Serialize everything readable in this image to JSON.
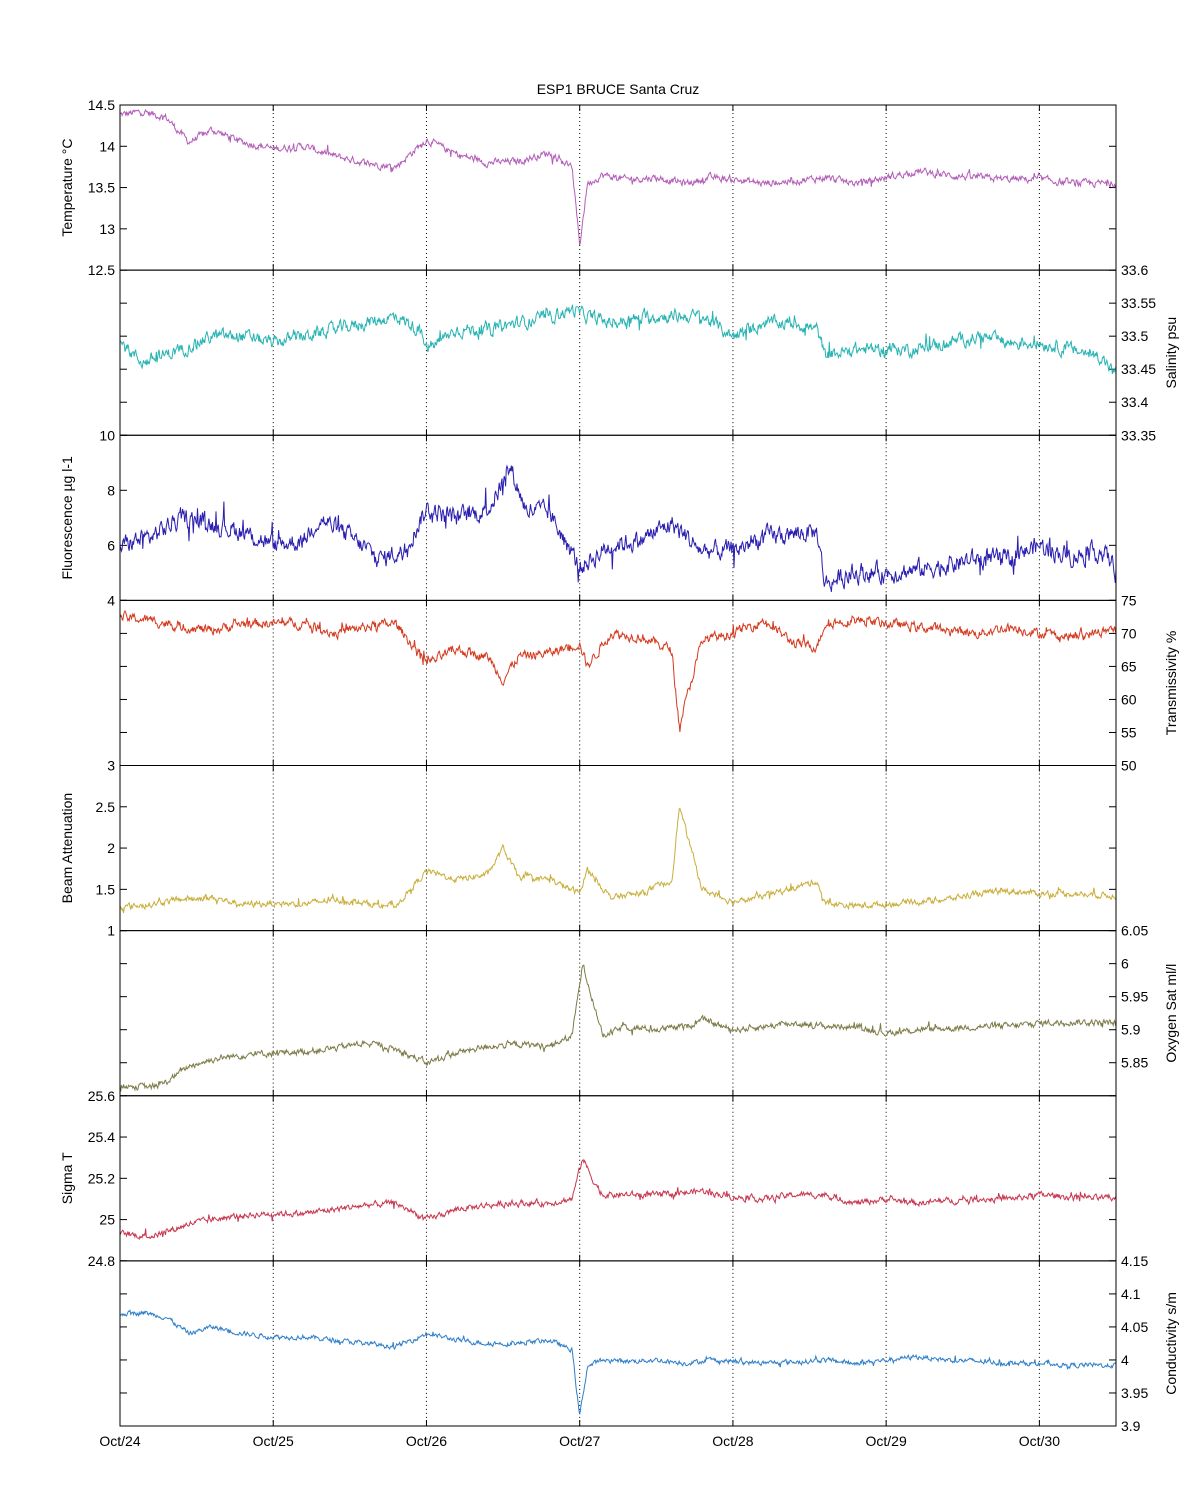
{
  "chart_data": {
    "type": "line",
    "title": "ESP1 BRUCE Santa Cruz",
    "x_ticks": [
      "Oct/24",
      "Oct/25",
      "Oct/26",
      "Oct/27",
      "Oct/28",
      "Oct/29",
      "Oct/30"
    ],
    "x_range_days": [
      0,
      6.5
    ],
    "grid": "vertical dotted lines at each day",
    "series": [
      {
        "name": "Temperature",
        "ylabel": "Temperature °C",
        "axis_side": "left",
        "color": "#b35eb8",
        "ylim": [
          12.5,
          14.5
        ],
        "ticks": [
          "12.5",
          "13",
          "13.5",
          "14",
          "14.5"
        ],
        "x": [
          0,
          0.15,
          0.3,
          0.45,
          0.6,
          0.8,
          1.0,
          1.2,
          1.4,
          1.6,
          1.8,
          2.0,
          2.2,
          2.4,
          2.6,
          2.8,
          2.95,
          3.0,
          3.05,
          3.15,
          3.3,
          3.5,
          3.7,
          3.85,
          4.0,
          4.2,
          4.4,
          4.6,
          4.8,
          5.0,
          5.2,
          5.4,
          5.6,
          5.8,
          6.0,
          6.2,
          6.5
        ],
        "values": [
          14.38,
          14.42,
          14.35,
          14.05,
          14.2,
          14.05,
          13.97,
          14.0,
          13.88,
          13.8,
          13.75,
          14.08,
          13.9,
          13.8,
          13.82,
          13.92,
          13.75,
          12.8,
          13.55,
          13.65,
          13.6,
          13.62,
          13.55,
          13.62,
          13.6,
          13.55,
          13.58,
          13.62,
          13.55,
          13.62,
          13.7,
          13.65,
          13.62,
          13.6,
          13.6,
          13.55,
          13.55
        ],
        "jitter": 0.035
      },
      {
        "name": "Salinity",
        "ylabel": "Salinity psu",
        "axis_side": "right",
        "color": "#29b3b3",
        "ylim": [
          33.35,
          33.6
        ],
        "ticks": [
          "33.35",
          "33.4",
          "33.45",
          "33.5",
          "33.55",
          "33.6"
        ],
        "x": [
          0,
          0.15,
          0.4,
          0.6,
          0.8,
          1.0,
          1.2,
          1.4,
          1.6,
          1.8,
          1.95,
          2.0,
          2.2,
          2.4,
          2.6,
          2.8,
          2.95,
          3.05,
          3.2,
          3.5,
          3.8,
          4.0,
          4.2,
          4.4,
          4.55,
          4.6,
          4.8,
          5.0,
          5.2,
          5.4,
          5.6,
          5.8,
          6.0,
          6.2,
          6.4,
          6.5
        ],
        "values": [
          33.49,
          33.46,
          33.48,
          33.5,
          33.5,
          33.49,
          33.5,
          33.51,
          33.52,
          33.53,
          33.51,
          33.48,
          33.51,
          33.51,
          33.52,
          33.53,
          33.54,
          33.53,
          33.52,
          33.53,
          33.53,
          33.5,
          33.52,
          33.52,
          33.51,
          33.47,
          33.48,
          33.48,
          33.48,
          33.49,
          33.5,
          33.49,
          33.49,
          33.48,
          33.47,
          33.44
        ],
        "jitter": 0.008
      },
      {
        "name": "Fluorescence",
        "ylabel": "Fluorescence µg l-1",
        "axis_side": "left",
        "color": "#2a1fb0",
        "ylim": [
          4,
          10
        ],
        "ticks": [
          "4",
          "6",
          "8",
          "10"
        ],
        "x": [
          0,
          0.2,
          0.4,
          0.6,
          0.8,
          1.0,
          1.2,
          1.3,
          1.5,
          1.7,
          1.85,
          2.0,
          2.2,
          2.4,
          2.55,
          2.65,
          2.8,
          3.0,
          3.2,
          3.4,
          3.6,
          3.8,
          4.0,
          4.2,
          4.4,
          4.55,
          4.6,
          4.8,
          5.0,
          5.2,
          5.4,
          5.6,
          5.8,
          6.0,
          6.2,
          6.4,
          6.5
        ],
        "values": [
          6.0,
          6.3,
          7.0,
          6.8,
          6.5,
          6.0,
          6.2,
          7.0,
          6.3,
          5.5,
          5.8,
          7.3,
          7.0,
          7.3,
          8.8,
          7.3,
          7.2,
          5.2,
          6.0,
          6.2,
          6.8,
          5.8,
          5.8,
          6.3,
          6.4,
          6.5,
          4.6,
          5.0,
          5.0,
          5.1,
          5.3,
          5.5,
          5.5,
          6.0,
          5.6,
          5.8,
          5.2
        ],
        "jitter": 0.28
      },
      {
        "name": "Transmissivity",
        "ylabel": "Transmissivity %",
        "axis_side": "right",
        "color": "#d43a1f",
        "ylim": [
          50,
          75
        ],
        "ticks": [
          "50",
          "55",
          "60",
          "65",
          "70",
          "75"
        ],
        "x": [
          0,
          0.2,
          0.4,
          0.6,
          0.8,
          1.0,
          1.2,
          1.4,
          1.6,
          1.8,
          2.0,
          2.2,
          2.4,
          2.5,
          2.6,
          2.8,
          3.0,
          3.05,
          3.2,
          3.4,
          3.6,
          3.65,
          3.8,
          4.0,
          4.2,
          4.4,
          4.55,
          4.6,
          4.8,
          5.0,
          5.2,
          5.4,
          5.6,
          5.8,
          6.0,
          6.2,
          6.5
        ],
        "values": [
          72.5,
          72.0,
          71.0,
          70.5,
          71.5,
          71.5,
          71.5,
          70.0,
          71.0,
          71.5,
          65.5,
          67.5,
          66.5,
          63.0,
          66.5,
          67.0,
          68.5,
          65.0,
          70.0,
          69.5,
          67.5,
          56.0,
          69.0,
          70.0,
          72.0,
          68.5,
          68.0,
          71.5,
          72.0,
          71.5,
          71.0,
          70.5,
          70.0,
          71.0,
          70.0,
          69.5,
          70.5
        ],
        "jitter": 0.6
      },
      {
        "name": "Beam Attenuation",
        "ylabel": "Beam Attenuation",
        "axis_side": "left",
        "color": "#c9ae3a",
        "ylim": [
          1,
          3
        ],
        "ticks": [
          "1",
          "1.5",
          "2",
          "2.5",
          "3"
        ],
        "x": [
          0,
          0.2,
          0.4,
          0.6,
          0.8,
          1.0,
          1.2,
          1.4,
          1.6,
          1.8,
          2.0,
          2.2,
          2.4,
          2.5,
          2.6,
          2.8,
          3.0,
          3.05,
          3.2,
          3.4,
          3.6,
          3.65,
          3.8,
          4.0,
          4.2,
          4.4,
          4.55,
          4.6,
          4.8,
          5.0,
          5.2,
          5.4,
          5.6,
          5.8,
          6.0,
          6.2,
          6.5
        ],
        "values": [
          1.28,
          1.32,
          1.38,
          1.4,
          1.32,
          1.33,
          1.32,
          1.38,
          1.33,
          1.3,
          1.72,
          1.62,
          1.68,
          2.0,
          1.65,
          1.62,
          1.45,
          1.75,
          1.4,
          1.45,
          1.6,
          2.5,
          1.5,
          1.35,
          1.42,
          1.52,
          1.6,
          1.33,
          1.3,
          1.32,
          1.35,
          1.38,
          1.45,
          1.48,
          1.45,
          1.45,
          1.42
        ],
        "jitter": 0.03
      },
      {
        "name": "Oxygen Sat",
        "ylabel": "Oxygen Sat ml/l",
        "axis_side": "right",
        "color": "#7d7c4a",
        "ylim": [
          5.8,
          6.05
        ],
        "ticks": [
          "5.85",
          "5.9",
          "5.95",
          "6",
          "6.05"
        ],
        "x": [
          0,
          0.2,
          0.3,
          0.45,
          0.6,
          0.8,
          1.0,
          1.2,
          1.4,
          1.6,
          1.8,
          2.0,
          2.2,
          2.4,
          2.6,
          2.8,
          2.95,
          3.02,
          3.08,
          3.15,
          3.3,
          3.5,
          3.7,
          3.8,
          4.0,
          4.2,
          4.4,
          4.6,
          4.8,
          5.0,
          5.2,
          5.4,
          5.6,
          5.8,
          6.0,
          6.2,
          6.5
        ],
        "values": [
          5.815,
          5.813,
          5.82,
          5.845,
          5.855,
          5.862,
          5.865,
          5.867,
          5.872,
          5.88,
          5.87,
          5.85,
          5.865,
          5.875,
          5.878,
          5.875,
          5.89,
          6.0,
          5.95,
          5.89,
          5.905,
          5.9,
          5.905,
          5.915,
          5.9,
          5.905,
          5.91,
          5.905,
          5.905,
          5.895,
          5.9,
          5.902,
          5.905,
          5.905,
          5.91,
          5.912,
          5.91
        ],
        "jitter": 0.004
      },
      {
        "name": "Sigma T",
        "ylabel": "Sigma T",
        "axis_side": "left",
        "color": "#c7374f",
        "ylim": [
          24.8,
          25.6
        ],
        "ticks": [
          "24.8",
          "25",
          "25.2",
          "25.4",
          "25.6"
        ],
        "x": [
          0,
          0.2,
          0.3,
          0.45,
          0.6,
          0.8,
          1.0,
          1.2,
          1.4,
          1.6,
          1.8,
          2.0,
          2.2,
          2.4,
          2.6,
          2.8,
          2.95,
          3.02,
          3.08,
          3.15,
          3.3,
          3.5,
          3.7,
          3.8,
          4.0,
          4.2,
          4.4,
          4.6,
          4.8,
          5.0,
          5.2,
          5.4,
          5.6,
          5.8,
          6.0,
          6.2,
          6.5
        ],
        "values": [
          24.93,
          24.92,
          24.94,
          24.98,
          25.0,
          25.02,
          25.03,
          25.03,
          25.05,
          25.07,
          25.08,
          25.0,
          25.05,
          25.07,
          25.08,
          25.08,
          25.1,
          25.3,
          25.2,
          25.12,
          25.12,
          25.12,
          25.13,
          25.14,
          25.11,
          25.1,
          25.12,
          25.12,
          25.08,
          25.1,
          25.08,
          25.09,
          25.1,
          25.1,
          25.12,
          25.11,
          25.1
        ],
        "jitter": 0.012
      },
      {
        "name": "Conductivity",
        "ylabel": "Conductivity s/m",
        "axis_side": "right",
        "color": "#2e7fc9",
        "ylim": [
          3.9,
          4.15
        ],
        "ticks": [
          "3.9",
          "3.95",
          "4",
          "4.05",
          "4.1",
          "4.15"
        ],
        "x": [
          0,
          0.15,
          0.3,
          0.45,
          0.6,
          0.8,
          1.0,
          1.2,
          1.4,
          1.6,
          1.8,
          2.0,
          2.2,
          2.4,
          2.6,
          2.8,
          2.95,
          3.0,
          3.05,
          3.15,
          3.3,
          3.5,
          3.7,
          3.85,
          4.0,
          4.2,
          4.4,
          4.6,
          4.8,
          5.0,
          5.2,
          5.4,
          5.6,
          5.8,
          6.0,
          6.2,
          6.5
        ],
        "values": [
          4.07,
          4.072,
          4.065,
          4.04,
          4.05,
          4.04,
          4.035,
          4.035,
          4.03,
          4.025,
          4.02,
          4.04,
          4.03,
          4.025,
          4.025,
          4.03,
          4.015,
          3.915,
          3.99,
          4.0,
          3.998,
          4.0,
          3.995,
          4.0,
          3.998,
          3.995,
          3.997,
          4.0,
          3.995,
          4.0,
          4.005,
          4.0,
          3.998,
          3.995,
          3.995,
          3.992,
          3.992
        ],
        "jitter": 0.003
      }
    ]
  }
}
